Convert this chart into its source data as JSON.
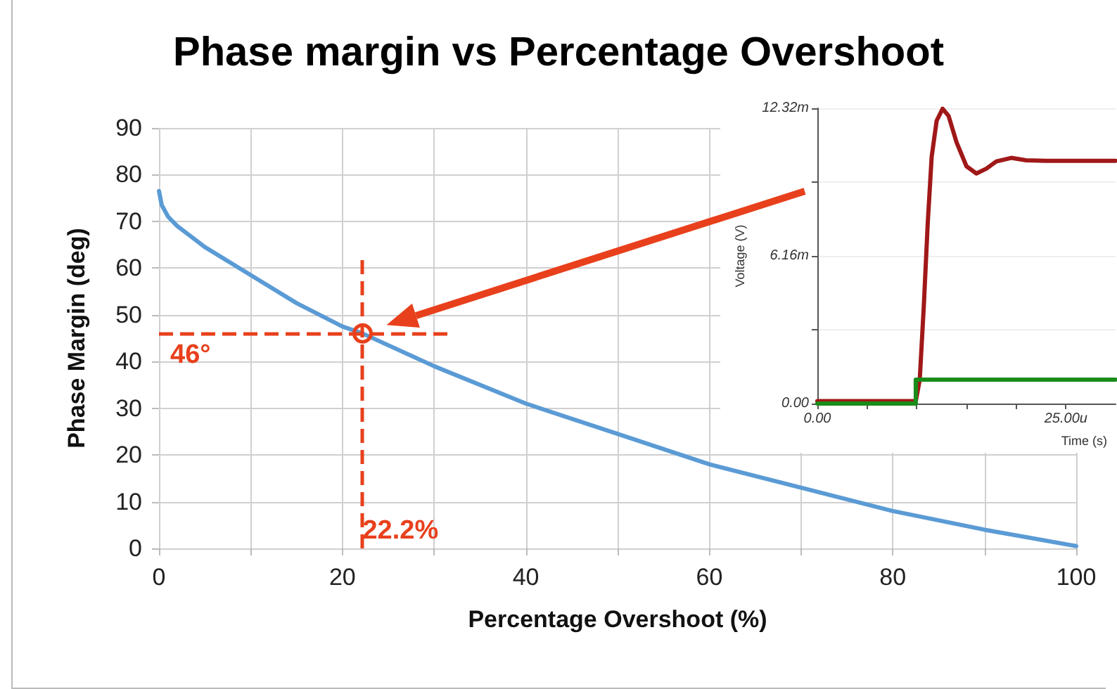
{
  "chart_data": [
    {
      "type": "line",
      "title": "Phase margin vs Percentage Overshoot",
      "xlabel": "Percentage Overshoot (%)",
      "ylabel": "Phase Margin (deg)",
      "series": [
        {
          "color": "#5b9bd5",
          "x": [
            0,
            0.3,
            1,
            2,
            5,
            10,
            15,
            20,
            22.2,
            30,
            40,
            50,
            60,
            70,
            80,
            90,
            100
          ],
          "values": [
            76.5,
            73.5,
            71,
            69,
            64.5,
            58.5,
            52.5,
            47.5,
            46,
            39,
            31,
            24.5,
            18,
            13,
            8,
            4,
            0.5
          ]
        }
      ],
      "xlim": [
        0,
        100
      ],
      "xticks": [
        0,
        {
          "value": 10,
          "label": null
        },
        20,
        {
          "value": 30,
          "label": null
        },
        40,
        {
          "value": 50,
          "label": null
        },
        60,
        {
          "value": 70,
          "label": null
        },
        80,
        {
          "value": 90,
          "label": null
        },
        100
      ],
      "ylim": [
        0,
        90
      ],
      "yticks": [
        0,
        10,
        20,
        30,
        40,
        50,
        60,
        70,
        80,
        90
      ],
      "ref_lines": [
        {
          "axis": "y",
          "value": 46,
          "label": "46°",
          "color": "#e8401c",
          "line_style": "dashed"
        },
        {
          "axis": "x",
          "value": 22.2,
          "label": "22.2%",
          "color": "#e8401c",
          "line_style": "dashed"
        }
      ],
      "grid": true,
      "marker": "none",
      "line_style": "solid"
    },
    {
      "type": "line",
      "xlabel": "Time (s)",
      "ylabel": "Voltage (V)",
      "series": [
        {
          "color": "#a01818",
          "x": [
            0,
            9.9,
            10.3,
            10.7,
            11.1,
            11.5,
            12,
            12.6,
            13.2,
            14,
            15,
            16,
            17,
            18,
            19.5,
            21,
            23,
            30
          ],
          "values": [
            0.1,
            0.1,
            1,
            4,
            7.5,
            10.3,
            11.8,
            12.3,
            12,
            10.9,
            9.9,
            9.6,
            9.8,
            10.1,
            10.25,
            10.15,
            10.13,
            10.13
          ]
        },
        {
          "type": "step",
          "color": "#1a8c1a",
          "x": [
            0,
            9.9,
            30
          ],
          "values": [
            0,
            1,
            1
          ]
        }
      ],
      "xlim": [
        0,
        30
      ],
      "xticks": [
        {
          "value": 0,
          "label": "0.00"
        },
        {
          "value": 5,
          "label": null
        },
        {
          "value": 10,
          "label": null
        },
        {
          "value": 15,
          "label": null
        },
        {
          "value": 20,
          "label": null
        },
        {
          "value": 25,
          "label": "25.00u"
        }
      ],
      "ylim": [
        0,
        12.32
      ],
      "yticks": [
        {
          "value": 0,
          "label": "0.00"
        },
        {
          "value": 3.08,
          "label": null
        },
        {
          "value": 6.16,
          "label": "6.16m"
        },
        {
          "value": 9.24,
          "label": null
        },
        {
          "value": 12.32,
          "label": "12.32m"
        }
      ],
      "grid": "y",
      "marker": "none",
      "line_style": "solid"
    }
  ]
}
